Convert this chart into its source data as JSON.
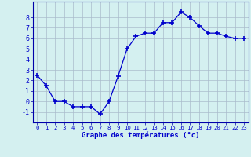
{
  "hours": [
    0,
    1,
    2,
    3,
    4,
    5,
    6,
    7,
    8,
    9,
    10,
    11,
    12,
    13,
    14,
    15,
    16,
    17,
    18,
    19,
    20,
    21,
    22,
    23
  ],
  "temperatures": [
    2.5,
    1.5,
    0.0,
    0.0,
    -0.5,
    -0.5,
    -0.5,
    -1.2,
    0.0,
    2.4,
    5.0,
    6.2,
    6.5,
    6.5,
    7.5,
    7.5,
    8.5,
    8.0,
    7.2,
    6.5,
    6.5,
    6.2,
    6.0,
    6.0
  ],
  "line_color": "#0000cc",
  "marker": "+",
  "marker_size": 4,
  "bg_color": "#d4f0f0",
  "xlabel": "Graphe des températures (°c)",
  "xlabel_color": "#0000cc",
  "ylim": [
    -2,
    9.5
  ],
  "yticks": [
    -1,
    0,
    1,
    2,
    3,
    4,
    5,
    6,
    7,
    8
  ],
  "tick_label_color": "#0000cc",
  "grid_color": "#aabbcc",
  "spine_color": "#0000aa"
}
